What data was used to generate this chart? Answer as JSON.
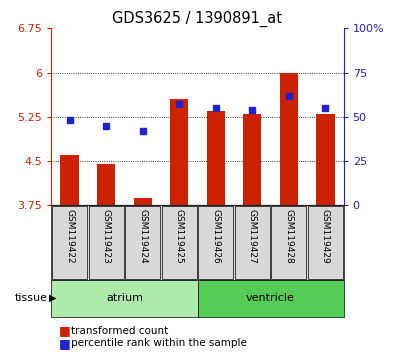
{
  "title": "GDS3625 / 1390891_at",
  "samples": [
    "GSM119422",
    "GSM119423",
    "GSM119424",
    "GSM119425",
    "GSM119426",
    "GSM119427",
    "GSM119428",
    "GSM119429"
  ],
  "red_values": [
    4.6,
    4.45,
    3.87,
    5.55,
    5.35,
    5.3,
    6.0,
    5.3
  ],
  "blue_values_pct": [
    48,
    45,
    42,
    57,
    55,
    54,
    62,
    55
  ],
  "baseline": 3.75,
  "ylim_left": [
    3.75,
    6.75
  ],
  "ylim_right": [
    0,
    100
  ],
  "yticks_left": [
    3.75,
    4.5,
    5.25,
    6.0,
    6.75
  ],
  "yticks_right": [
    0,
    25,
    50,
    75,
    100
  ],
  "ytick_labels_left": [
    "3.75",
    "4.5",
    "5.25",
    "6",
    "6.75"
  ],
  "ytick_labels_right": [
    "0",
    "25",
    "50",
    "75",
    "100%"
  ],
  "groups": [
    {
      "label": "atrium",
      "start": 0,
      "end": 3,
      "color": "#aeeaaa"
    },
    {
      "label": "ventricle",
      "start": 4,
      "end": 7,
      "color": "#55cc55"
    }
  ],
  "bar_color": "#cc2200",
  "dot_color": "#2222cc",
  "plot_bg": "#ffffff",
  "legend_items": [
    "transformed count",
    "percentile rank within the sample"
  ]
}
